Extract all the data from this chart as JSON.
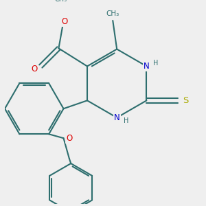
{
  "bg_color": "#efefef",
  "bond_color": "#2d6e6e",
  "bond_width": 1.5,
  "atom_colors": {
    "O": "#dd0000",
    "N": "#0000cc",
    "S": "#aaaa00",
    "C": "#2d6e6e",
    "H": "#2d6e6e"
  },
  "font_size": 8.5,
  "fig_size": [
    3.0,
    3.0
  ],
  "dpi": 100,
  "ring_r": 0.42,
  "ph_r": 0.36,
  "ph2_r": 0.3
}
